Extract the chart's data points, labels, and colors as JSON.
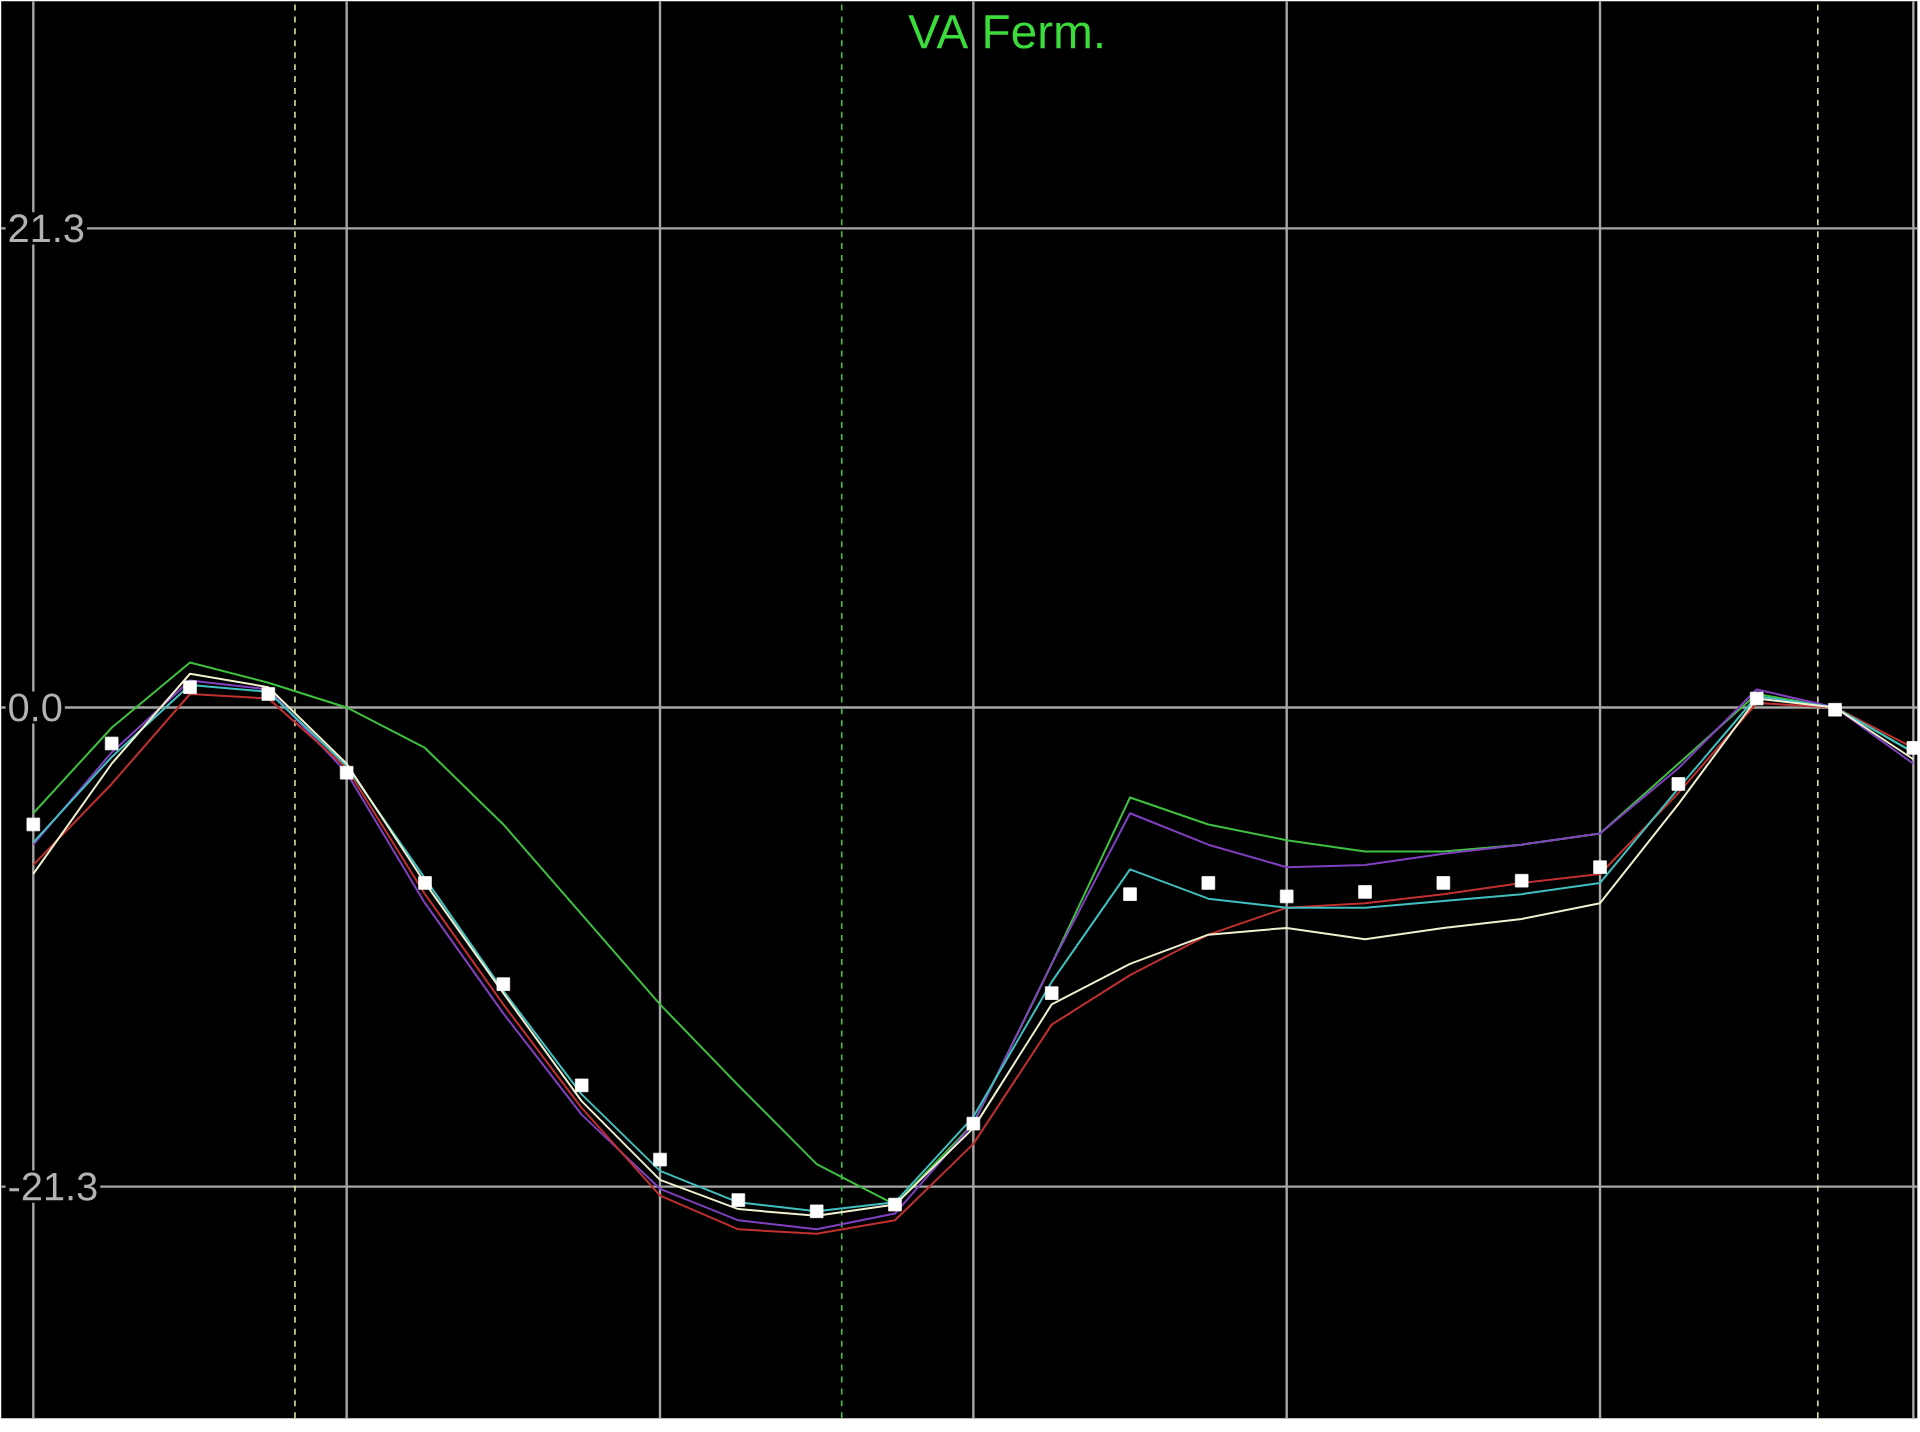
{
  "chart_data": {
    "type": "line",
    "title": "VA Ferm.",
    "categories": [
      null,
      null,
      null,
      null,
      null,
      null,
      null,
      null,
      null,
      null,
      null,
      null,
      null,
      null,
      null,
      null,
      null,
      null,
      null,
      null,
      null,
      null,
      null,
      null,
      null
    ],
    "series": [
      {
        "color": "#40c040",
        "values": [
          -4.7,
          -0.9,
          2.0,
          1.1,
          0,
          -1.8,
          -5.2,
          -9.2,
          -13.2,
          -16.8,
          -20.3,
          -22.1,
          -18.5,
          -11.4,
          -4.0,
          -5.2,
          -5.9,
          -6.4,
          -6.4,
          -6.1,
          -5.6,
          -2.5,
          0.6,
          0,
          -2.0
        ]
      },
      {
        "color": "#8040c0",
        "values": [
          -6.1,
          -2.0,
          1.2,
          0.8,
          -2.9,
          -8.7,
          -13.6,
          -18.1,
          -21.4,
          -22.8,
          -23.2,
          -22.5,
          -18.5,
          -11.4,
          -4.7,
          -6.1,
          -7.1,
          -7.0,
          -6.5,
          -6.1,
          -5.6,
          -2.7,
          0.8,
          0,
          -2.5
        ]
      },
      {
        "color": "#c03030",
        "values": [
          -7.0,
          -3.4,
          0.6,
          0.4,
          -2.7,
          -8.3,
          -13.2,
          -17.8,
          -21.7,
          -23.2,
          -23.4,
          -22.8,
          -19.4,
          -14.1,
          -11.9,
          -10.1,
          -8.9,
          -8.7,
          -8.3,
          -7.8,
          -7.4,
          -3.8,
          0.2,
          0,
          -1.8
        ]
      },
      {
        "color": "#40c0c0",
        "values": [
          -6.0,
          -2.2,
          1.0,
          0.7,
          -2.6,
          -7.6,
          -12.6,
          -17.2,
          -20.6,
          -22.0,
          -22.4,
          -22.0,
          -18.2,
          -12.2,
          -7.2,
          -8.5,
          -8.9,
          -8.9,
          -8.6,
          -8.3,
          -7.8,
          -3.6,
          0.5,
          0,
          -2.0
        ]
      },
      {
        "color": "#f0f0d0",
        "values": [
          -7.4,
          -2.5,
          1.5,
          0.9,
          -2.5,
          -7.8,
          -12.7,
          -17.5,
          -21.0,
          -22.3,
          -22.6,
          -22.1,
          -18.7,
          -13.2,
          -11.4,
          -10.1,
          -9.8,
          -10.3,
          -9.8,
          -9.4,
          -8.7,
          -4.3,
          0.4,
          0,
          -2.3
        ]
      },
      {
        "type": "scatter",
        "marker": "square",
        "color": "#ffffff",
        "values": [
          -5.2,
          -1.6,
          0.9,
          0.6,
          -2.9,
          -7.8,
          -12.3,
          -16.8,
          -20.1,
          -21.9,
          -22.4,
          -22.1,
          -18.5,
          -12.7,
          -8.3,
          -7.8,
          -8.4,
          -8.2,
          -7.8,
          -7.7,
          -7.1,
          -3.4,
          0.4,
          -0.1,
          -1.8
        ]
      }
    ],
    "ylim": [
      -31.6,
      31.4
    ],
    "yticks": [
      21.3,
      {
        "value": 0,
        "label": "0.0"
      },
      -21.3
    ],
    "grid": true,
    "tick_labels": "y"
  }
}
